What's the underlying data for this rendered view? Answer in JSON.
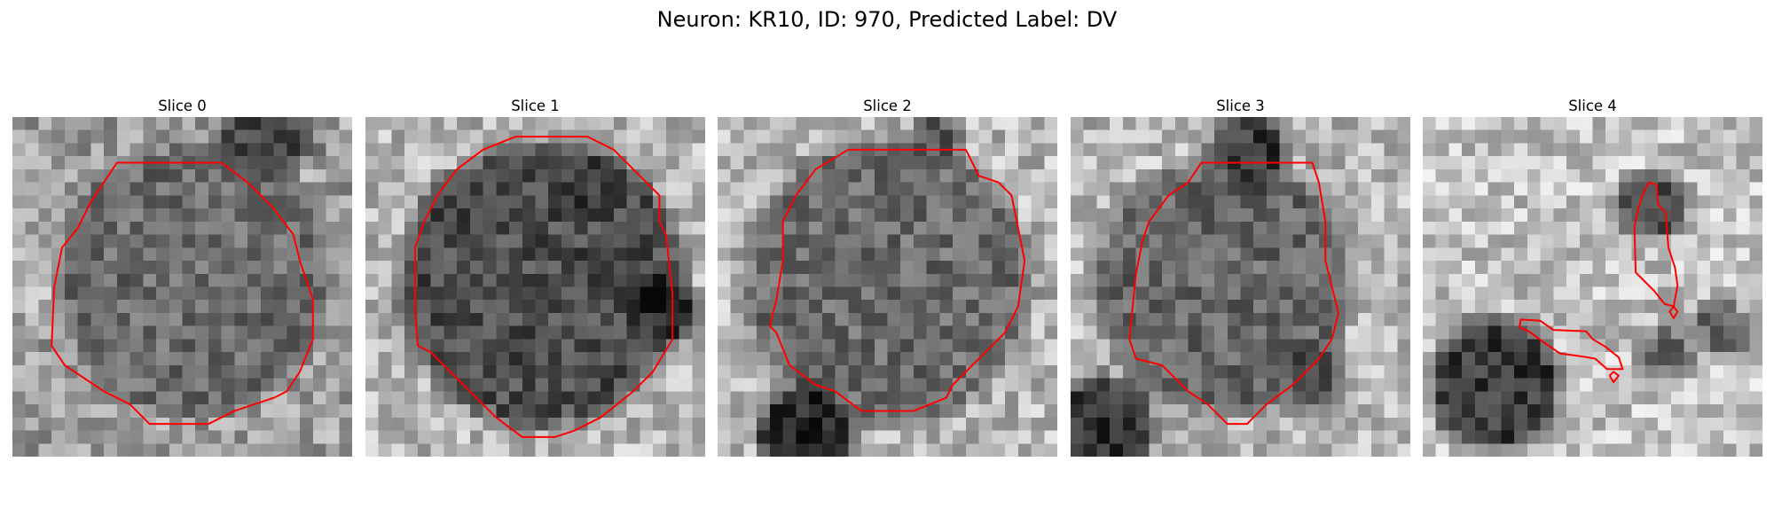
{
  "figure": {
    "title": "Neuron: KR10, ID: 970, Predicted Label: DV"
  },
  "contour_color": "#ff0000",
  "grid_size": 26,
  "panels": [
    {
      "title": "Slice 0",
      "blobs": [
        {
          "cx": 13.8,
          "cy": 12.4,
          "r": 10.5,
          "level": 0.42
        },
        {
          "cx": 19.5,
          "cy": 1.2,
          "r": 3.6,
          "level": 0.25
        },
        {
          "cx": 0.5,
          "cy": 12.0,
          "r": 2.8,
          "level": 0.78
        }
      ],
      "background_level": 0.62,
      "contours": [
        [
          [
            8,
            3.5
          ],
          [
            16,
            3.5
          ],
          [
            18,
            5
          ],
          [
            20,
            7
          ],
          [
            21.5,
            9
          ],
          [
            22,
            11
          ],
          [
            23,
            14
          ],
          [
            23,
            17
          ],
          [
            22,
            19.5
          ],
          [
            21,
            21
          ],
          [
            20,
            21.5
          ],
          [
            17,
            22.5
          ],
          [
            15,
            23.5
          ],
          [
            10.5,
            23.5
          ],
          [
            9,
            22
          ],
          [
            7,
            21
          ],
          [
            5.5,
            20
          ],
          [
            4,
            19
          ],
          [
            3,
            17.5
          ],
          [
            3.2,
            13
          ],
          [
            3.8,
            10
          ],
          [
            5,
            8.5
          ],
          [
            6,
            6.5
          ]
        ]
      ]
    },
    {
      "title": "Slice 1",
      "blobs": [
        {
          "cx": 13.5,
          "cy": 12.8,
          "r": 11.0,
          "level": 0.3
        },
        {
          "cx": 22.6,
          "cy": 14.6,
          "r": 2.6,
          "level": 0.15
        },
        {
          "cx": 17.8,
          "cy": 5.2,
          "r": 2.2,
          "level": 0.2
        }
      ],
      "background_level": 0.72,
      "contours": [
        [
          [
            11.5,
            1.5
          ],
          [
            17,
            1.5
          ],
          [
            19,
            2.5
          ],
          [
            21,
            4.5
          ],
          [
            22.5,
            6
          ],
          [
            22.5,
            8
          ],
          [
            23,
            9
          ],
          [
            23.5,
            13.5
          ],
          [
            23.5,
            17
          ],
          [
            22,
            19.5
          ],
          [
            20.5,
            21
          ],
          [
            18,
            23
          ],
          [
            16,
            24
          ],
          [
            14.5,
            24.5
          ],
          [
            12,
            24.5
          ],
          [
            10,
            23
          ],
          [
            8.5,
            21.5
          ],
          [
            7,
            20
          ],
          [
            5,
            18
          ],
          [
            4,
            17.5
          ],
          [
            3.8,
            15
          ],
          [
            3.8,
            10
          ],
          [
            4.5,
            8
          ],
          [
            5.5,
            6
          ],
          [
            7,
            4
          ],
          [
            9,
            2.5
          ]
        ]
      ]
    },
    {
      "title": "Slice 2",
      "blobs": [
        {
          "cx": 13.0,
          "cy": 12.6,
          "r": 11.0,
          "level": 0.42
        },
        {
          "cx": 6.6,
          "cy": 24.2,
          "r": 3.6,
          "level": 0.15
        },
        {
          "cx": 16.8,
          "cy": 1.8,
          "r": 2.0,
          "level": 0.32
        }
      ],
      "background_level": 0.72,
      "contours": [
        [
          [
            10,
            2.5
          ],
          [
            19,
            2.5
          ],
          [
            20,
            4.5
          ],
          [
            21.5,
            5
          ],
          [
            22.5,
            6
          ],
          [
            23,
            8.5
          ],
          [
            23.5,
            11
          ],
          [
            23,
            14.5
          ],
          [
            22,
            16.5
          ],
          [
            20.5,
            18
          ],
          [
            19,
            19.5
          ],
          [
            18,
            20.5
          ],
          [
            17.5,
            21.5
          ],
          [
            15,
            22.5
          ],
          [
            11,
            22.5
          ],
          [
            9,
            21
          ],
          [
            7.5,
            20.5
          ],
          [
            5.5,
            19
          ],
          [
            4.5,
            16.5
          ],
          [
            4,
            16
          ],
          [
            4.5,
            14
          ],
          [
            5,
            11
          ],
          [
            5,
            8
          ],
          [
            6,
            6
          ],
          [
            7.5,
            4
          ]
        ]
      ]
    },
    {
      "title": "Slice 3",
      "blobs": [
        {
          "cx": 11.6,
          "cy": 12.8,
          "r": 9.8,
          "level": 0.4
        },
        {
          "cx": 2.6,
          "cy": 23.8,
          "r": 3.8,
          "level": 0.2
        },
        {
          "cx": 13.8,
          "cy": 2.6,
          "r": 2.8,
          "level": 0.22
        },
        {
          "cx": 18.6,
          "cy": 19.8,
          "r": 2.5,
          "level": 0.33
        }
      ],
      "background_level": 0.72,
      "contours": [
        [
          [
            10,
            3.5
          ],
          [
            18.5,
            3.5
          ],
          [
            19,
            5
          ],
          [
            19.5,
            8
          ],
          [
            19.5,
            11
          ],
          [
            20,
            13
          ],
          [
            20.5,
            15
          ],
          [
            20,
            17
          ],
          [
            19,
            18.5
          ],
          [
            17,
            20.5
          ],
          [
            15,
            22
          ],
          [
            13.5,
            23.5
          ],
          [
            12,
            23.5
          ],
          [
            10.5,
            22
          ],
          [
            9,
            21
          ],
          [
            7,
            19
          ],
          [
            5,
            18.5
          ],
          [
            4.5,
            17
          ],
          [
            4.8,
            14
          ],
          [
            5,
            12
          ],
          [
            5.5,
            9.5
          ],
          [
            6,
            8
          ],
          [
            7.5,
            6
          ],
          [
            9,
            5
          ]
        ]
      ]
    },
    {
      "title": "Slice 4",
      "blobs": [
        {
          "cx": 5.5,
          "cy": 20.5,
          "r": 5.0,
          "level": 0.22
        },
        {
          "cx": 17.6,
          "cy": 6.8,
          "r": 2.6,
          "level": 0.28
        },
        {
          "cx": 18.5,
          "cy": 18.2,
          "r": 2.2,
          "level": 0.42
        },
        {
          "cx": 22.8,
          "cy": 16.2,
          "r": 2.2,
          "level": 0.4
        }
      ],
      "background_level": 0.76,
      "contours": [
        [
          [
            17.3,
            5
          ],
          [
            17.9,
            5.2
          ],
          [
            18,
            6.7
          ],
          [
            18.6,
            7.3
          ],
          [
            18.8,
            10
          ],
          [
            19.3,
            11.5
          ],
          [
            19.5,
            12.9
          ],
          [
            19.2,
            14.5
          ],
          [
            18.5,
            14.3
          ],
          [
            17.7,
            13.3
          ],
          [
            16.9,
            12.5
          ],
          [
            16.3,
            11.9
          ],
          [
            16.2,
            8.4
          ],
          [
            16.5,
            7
          ],
          [
            16.8,
            6
          ]
        ],
        [
          [
            19.2,
            14.5
          ],
          [
            19.5,
            14.9
          ],
          [
            19.2,
            15.4
          ],
          [
            18.9,
            14.9
          ]
        ],
        [
          [
            7.5,
            15.5
          ],
          [
            9,
            15.6
          ],
          [
            10,
            16.3
          ],
          [
            12.5,
            16.4
          ],
          [
            13,
            17
          ],
          [
            14,
            17.6
          ],
          [
            15,
            18.4
          ],
          [
            15.3,
            19.3
          ],
          [
            14.1,
            19.3
          ],
          [
            13.2,
            18.5
          ],
          [
            12,
            18.3
          ],
          [
            10.5,
            18.1
          ],
          [
            9.2,
            17.2
          ],
          [
            8.1,
            16.4
          ],
          [
            7.4,
            16.1
          ]
        ],
        [
          [
            14.6,
            19.5
          ],
          [
            15.0,
            19.8
          ],
          [
            14.6,
            20.3
          ],
          [
            14.3,
            19.8
          ]
        ]
      ]
    }
  ]
}
